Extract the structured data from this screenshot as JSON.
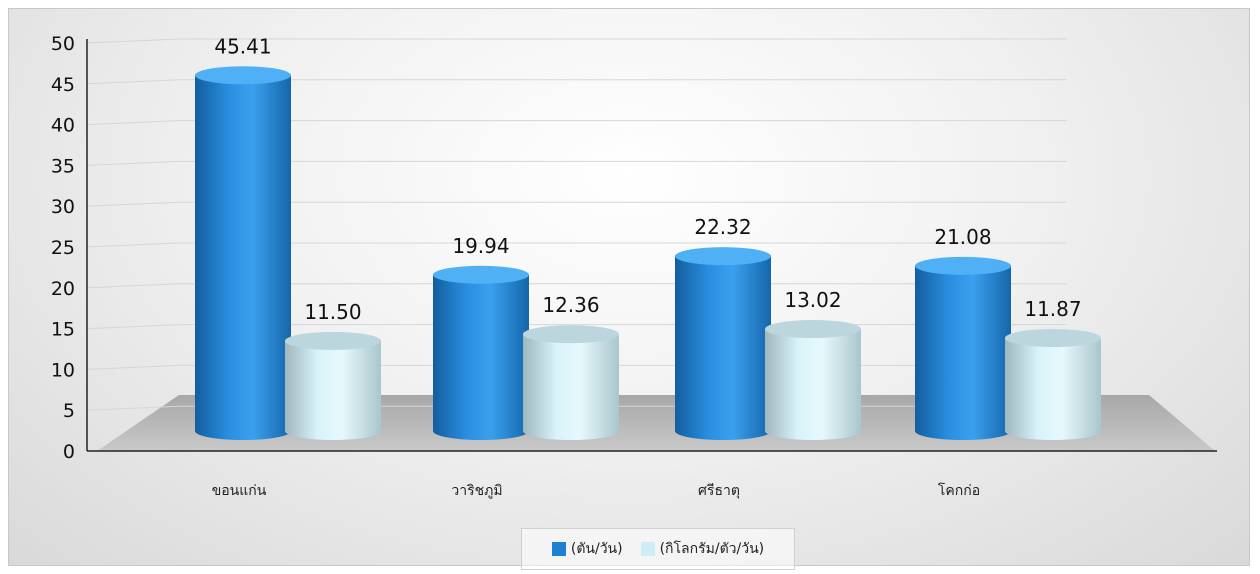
{
  "chart_data": {
    "type": "bar",
    "categories": [
      "ขอนแก่น",
      "วาริชภูมิ",
      "ศรีธาตุ",
      "โคกก่อ"
    ],
    "series": [
      {
        "name": "(ตัน/วัน)",
        "values": [
          45.41,
          19.94,
          22.32,
          21.08
        ],
        "color": "#1f7fd1"
      },
      {
        "name": "(กิโลกรัม/ตัว/วัน)",
        "values": [
          11.5,
          12.36,
          13.02,
          11.87
        ],
        "color": "#cdeef6"
      }
    ],
    "data_labels": [
      [
        "45.41",
        "19.94",
        "22.32",
        "21.08"
      ],
      [
        "11.50",
        "12.36",
        "13.02",
        "11.87"
      ]
    ],
    "y_ticks": [
      "0",
      "5",
      "10",
      "15",
      "20",
      "25",
      "30",
      "35",
      "40",
      "45",
      "50"
    ],
    "ylim": [
      0,
      50
    ],
    "grid": true,
    "legend_position": "bottom",
    "style": "3d-cylinder"
  }
}
